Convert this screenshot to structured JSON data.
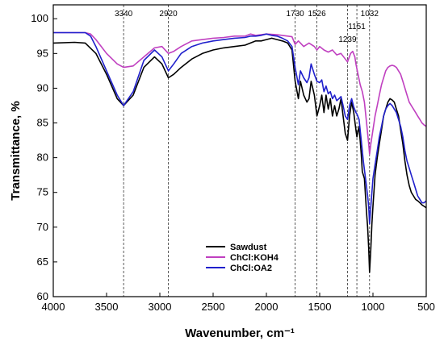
{
  "chart_data": {
    "type": "line",
    "xlabel": "Wavenumber, cm⁻¹",
    "ylabel": "Transmittance, %",
    "xlim": [
      4000,
      500
    ],
    "ylim": [
      60,
      102
    ],
    "x_ticks": [
      4000,
      3500,
      3000,
      2500,
      2000,
      1500,
      1000,
      500
    ],
    "y_ticks": [
      60,
      65,
      70,
      75,
      80,
      85,
      90,
      95,
      100
    ],
    "grid": false,
    "legend_position": "bottom-left",
    "annotations": [
      {
        "label": "3340",
        "x": 3340
      },
      {
        "label": "2920",
        "x": 2920
      },
      {
        "label": "1730",
        "x": 1730
      },
      {
        "label": "1526",
        "x": 1526
      },
      {
        "label": "1239",
        "x": 1239
      },
      {
        "label": "1151",
        "x": 1151
      },
      {
        "label": "1032",
        "x": 1032
      }
    ],
    "series": [
      {
        "name": "Sawdust",
        "color": "#000000",
        "x": [
          4000,
          3800,
          3700,
          3600,
          3500,
          3400,
          3340,
          3250,
          3150,
          3050,
          2980,
          2920,
          2870,
          2800,
          2700,
          2600,
          2500,
          2400,
          2300,
          2200,
          2150,
          2100,
          2050,
          2000,
          1950,
          1900,
          1850,
          1800,
          1760,
          1730,
          1700,
          1680,
          1650,
          1620,
          1600,
          1580,
          1550,
          1526,
          1500,
          1480,
          1460,
          1440,
          1420,
          1400,
          1380,
          1360,
          1340,
          1320,
          1300,
          1280,
          1260,
          1239,
          1220,
          1200,
          1180,
          1160,
          1151,
          1130,
          1110,
          1100,
          1080,
          1060,
          1050,
          1040,
          1032,
          1020,
          1010,
          1000,
          980,
          960,
          940,
          920,
          900,
          880,
          860,
          840,
          820,
          800,
          780,
          760,
          740,
          720,
          700,
          680,
          660,
          640,
          620,
          600,
          580,
          560,
          540,
          520,
          500
        ],
        "values": [
          96.5,
          96.6,
          96.5,
          95,
          92,
          88.5,
          87.5,
          89,
          93,
          94.5,
          93.5,
          91.5,
          92,
          93,
          94.2,
          95,
          95.5,
          95.8,
          96,
          96.2,
          96.5,
          96.8,
          96.8,
          97,
          97.2,
          97,
          96.8,
          96.5,
          95.5,
          91,
          88.5,
          91,
          89,
          88,
          88.5,
          91,
          89,
          86,
          87.5,
          89,
          86.5,
          89,
          87,
          88.5,
          86,
          87.5,
          86,
          87,
          88.5,
          86,
          83.5,
          82.5,
          86,
          88,
          86.5,
          84,
          83,
          84.5,
          80.5,
          78,
          77,
          72,
          70,
          67,
          63.5,
          67,
          70.5,
          73,
          77.5,
          80,
          82,
          84,
          86,
          87,
          88,
          88.5,
          88.3,
          88,
          87,
          86,
          84,
          82,
          79.5,
          77.5,
          76,
          75,
          74.5,
          74,
          73.8,
          73.5,
          73.2,
          73,
          72.8
        ]
      },
      {
        "name": "ChCl:KOH4",
        "color": "#c040c0",
        "x": [
          4000,
          3800,
          3700,
          3650,
          3600,
          3500,
          3400,
          3340,
          3250,
          3150,
          3050,
          2980,
          2920,
          2870,
          2800,
          2700,
          2600,
          2500,
          2400,
          2300,
          2200,
          2150,
          2100,
          2000,
          1900,
          1800,
          1760,
          1730,
          1700,
          1680,
          1650,
          1600,
          1550,
          1526,
          1500,
          1460,
          1420,
          1380,
          1340,
          1300,
          1260,
          1239,
          1210,
          1190,
          1170,
          1160,
          1151,
          1120,
          1100,
          1080,
          1060,
          1040,
          1032,
          1020,
          1000,
          980,
          960,
          940,
          920,
          900,
          880,
          860,
          840,
          820,
          800,
          780,
          760,
          740,
          720,
          700,
          680,
          660,
          640,
          620,
          600,
          580,
          560,
          540,
          520,
          500
        ],
        "values": [
          98,
          98,
          98,
          97.8,
          97,
          95,
          93.5,
          93,
          93.2,
          94.5,
          95.8,
          96,
          95,
          95.3,
          96,
          96.8,
          97,
          97.2,
          97.3,
          97.5,
          97.5,
          97.8,
          97.6,
          97.8,
          97.7,
          97.5,
          97.4,
          96.3,
          96.8,
          96.5,
          96,
          96.5,
          96,
          95.5,
          96,
          95.5,
          95.2,
          95.5,
          94.8,
          95,
          94.2,
          93.8,
          95,
          95.3,
          94.5,
          93.5,
          92.8,
          90.5,
          89.5,
          88,
          85,
          82,
          80.5,
          82,
          84,
          86,
          87.5,
          89,
          90.5,
          91.5,
          92.5,
          93,
          93.2,
          93.3,
          93.2,
          93,
          92.5,
          92,
          91,
          90,
          89,
          88,
          87.5,
          87,
          86.5,
          86,
          85.5,
          85,
          84.7,
          84.5
        ]
      },
      {
        "name": "ChCl:OA2",
        "color": "#2020cc",
        "x": [
          4000,
          3800,
          3700,
          3650,
          3600,
          3500,
          3400,
          3340,
          3250,
          3150,
          3050,
          2980,
          2920,
          2870,
          2800,
          2700,
          2600,
          2500,
          2400,
          2300,
          2200,
          2150,
          2100,
          2050,
          2000,
          1950,
          1900,
          1850,
          1800,
          1760,
          1730,
          1700,
          1680,
          1650,
          1620,
          1600,
          1580,
          1550,
          1526,
          1500,
          1480,
          1460,
          1440,
          1420,
          1400,
          1380,
          1360,
          1340,
          1320,
          1300,
          1280,
          1260,
          1239,
          1220,
          1200,
          1180,
          1160,
          1151,
          1130,
          1110,
          1090,
          1070,
          1050,
          1040,
          1032,
          1020,
          1010,
          1000,
          980,
          960,
          940,
          920,
          900,
          880,
          860,
          840,
          820,
          800,
          780,
          760,
          740,
          720,
          700,
          680,
          660,
          640,
          620,
          600,
          580,
          560,
          540,
          520,
          500
        ],
        "values": [
          98,
          98,
          98,
          97.5,
          96,
          92.5,
          89,
          87.5,
          89.5,
          94,
          95.5,
          94.5,
          92.5,
          93.5,
          95,
          96,
          96.5,
          96.8,
          97,
          97.2,
          97.3,
          97.5,
          97.5,
          97.6,
          97.8,
          97.6,
          97.5,
          97.2,
          96.8,
          96,
          93,
          90.5,
          92.5,
          91.5,
          90.8,
          91.5,
          93.5,
          92,
          91,
          90.8,
          91.2,
          89.5,
          90.3,
          89.2,
          89.5,
          88.5,
          89,
          88.2,
          88.5,
          88.8,
          87.5,
          86,
          85.5,
          87.5,
          88.5,
          87.3,
          86.5,
          86.3,
          85.5,
          82.5,
          79.5,
          77,
          74.5,
          73,
          70.5,
          73,
          75,
          77,
          79,
          81,
          83,
          84.5,
          86,
          87,
          87.5,
          87.8,
          87.5,
          87,
          86.5,
          85.5,
          84.5,
          83,
          81,
          79.5,
          78.5,
          77.5,
          76.5,
          75.5,
          74.5,
          74,
          73.5,
          73.5,
          73.8
        ]
      }
    ]
  }
}
